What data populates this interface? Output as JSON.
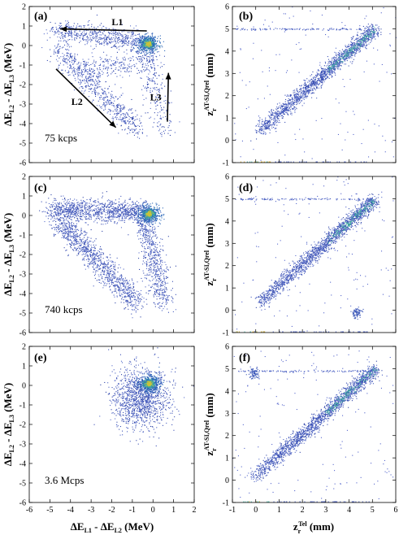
{
  "chart_data": [
    {
      "type": "scatter",
      "panel_label": "(a)",
      "rate_label": "75 kcps",
      "xlim": [
        -6,
        2
      ],
      "ylim": [
        -6,
        2
      ],
      "x_ticks": [
        -6,
        -5,
        -4,
        -3,
        -2,
        -1,
        0,
        1,
        2
      ],
      "y_ticks": [
        -6,
        -5,
        -4,
        -3,
        -2,
        -1,
        0,
        1,
        2
      ],
      "ylabel": "ΔE_L2 - ΔE_L3 (MeV)",
      "annotations": [
        {
          "text": "L1",
          "from": [
            -0.3,
            0.75
          ],
          "to": [
            -4.5,
            0.85
          ]
        },
        {
          "text": "L2",
          "from": [
            -4.7,
            -1.2
          ],
          "to": [
            -1.8,
            -4.2
          ]
        },
        {
          "text": "L3",
          "from": [
            0.7,
            -3.9
          ],
          "to": [
            0.75,
            -1.4
          ]
        }
      ],
      "features": {
        "hotspot": [
          -0.25,
          0.1
        ],
        "bands": [
          {
            "from": [
              -4.8,
              0.8
            ],
            "to": [
              -0.3,
              0.2
            ],
            "density": "medium"
          },
          {
            "from": [
              -4.6,
              -0.2
            ],
            "to": [
              -0.8,
              -4.3
            ],
            "density": "medium"
          },
          {
            "from": [
              -0.5,
              0.0
            ],
            "to": [
              0.6,
              -4.3
            ],
            "density": "low"
          },
          {
            "from": [
              -3.5,
              -1.3
            ],
            "to": [
              0.2,
              -0.6
            ],
            "density": "low"
          }
        ]
      }
    },
    {
      "type": "scatter",
      "panel_label": "(b)",
      "xlim": [
        -1,
        6
      ],
      "ylim": [
        -1,
        6
      ],
      "x_ticks": [
        -1,
        0,
        1,
        2,
        3,
        4,
        5,
        6
      ],
      "y_ticks": [
        -1,
        0,
        1,
        2,
        3,
        4,
        5,
        6
      ],
      "ylabel": "z_r^AT-SI,Qrel (mm)",
      "features": {
        "diagonal": {
          "from": [
            0.1,
            0.4
          ],
          "to": [
            5.1,
            5.0
          ]
        },
        "horizontal_line_y": 5.0,
        "bottom_line_y": -0.95
      }
    },
    {
      "type": "scatter",
      "panel_label": "(c)",
      "rate_label": "740 kcps",
      "xlim": [
        -6,
        2
      ],
      "ylim": [
        -6,
        2
      ],
      "x_ticks": [
        -6,
        -5,
        -4,
        -3,
        -2,
        -1,
        0,
        1,
        2
      ],
      "y_ticks": [
        -6,
        -5,
        -4,
        -3,
        -2,
        -1,
        0,
        1,
        2
      ],
      "ylabel": "ΔE_L2 - ΔE_L3 (MeV)",
      "features": {
        "hotspot": [
          -0.2,
          0.1
        ],
        "bands": [
          {
            "from": [
              -5.0,
              0.3
            ],
            "to": [
              -0.3,
              0.2
            ],
            "density": "high"
          },
          {
            "from": [
              -4.6,
              -0.2
            ],
            "to": [
              -0.8,
              -4.5
            ],
            "density": "high"
          },
          {
            "from": [
              -0.5,
              0.0
            ],
            "to": [
              0.5,
              -4.5
            ],
            "density": "medium"
          }
        ]
      }
    },
    {
      "type": "scatter",
      "panel_label": "(d)",
      "xlim": [
        -1,
        6
      ],
      "ylim": [
        -1,
        6
      ],
      "x_ticks": [
        -1,
        0,
        1,
        2,
        3,
        4,
        5,
        6
      ],
      "y_ticks": [
        -1,
        0,
        1,
        2,
        3,
        4,
        5,
        6
      ],
      "ylabel": "z_r^AT-SI,Qrel (mm)",
      "features": {
        "diagonal": {
          "from": [
            0.1,
            0.3
          ],
          "to": [
            5.1,
            5.0
          ]
        },
        "horizontal_line_y": 5.0,
        "bottom_line_y": -0.95,
        "small_cluster": [
          4.3,
          -0.1
        ]
      }
    },
    {
      "type": "scatter",
      "panel_label": "(e)",
      "rate_label": "3.6 Mcps",
      "xlim": [
        -6,
        2
      ],
      "ylim": [
        -6,
        2
      ],
      "x_ticks": [
        -6,
        -5,
        -4,
        -3,
        -2,
        -1,
        0,
        1,
        2
      ],
      "y_ticks": [
        -6,
        -5,
        -4,
        -3,
        -2,
        -1,
        0,
        1,
        2
      ],
      "xlabel": "ΔE_L1 - ΔE_L2 (MeV)",
      "ylabel": "ΔE_L2 - ΔE_L3 (MeV)",
      "features": {
        "hotspot": [
          -0.2,
          0.1
        ],
        "blob": {
          "x": [
            -2.0,
            0.8
          ],
          "y": [
            -2.3,
            1.0
          ]
        }
      }
    },
    {
      "type": "scatter",
      "panel_label": "(f)",
      "xlim": [
        -1,
        6
      ],
      "ylim": [
        -1,
        6
      ],
      "x_ticks": [
        -1,
        0,
        1,
        2,
        3,
        4,
        5,
        6
      ],
      "y_ticks": [
        -1,
        0,
        1,
        2,
        3,
        4,
        5,
        6
      ],
      "xlabel": "z_r^Tel (mm)",
      "ylabel": "z_r^AT-SI,Qrel (mm)",
      "features": {
        "diagonal": {
          "from": [
            -0.1,
            0.1
          ],
          "to": [
            5.1,
            5.0
          ]
        },
        "horizontal_line_y": 4.9,
        "bottom_line_y": -0.95,
        "small_cluster": [
          -0.1,
          4.8
        ]
      }
    }
  ]
}
